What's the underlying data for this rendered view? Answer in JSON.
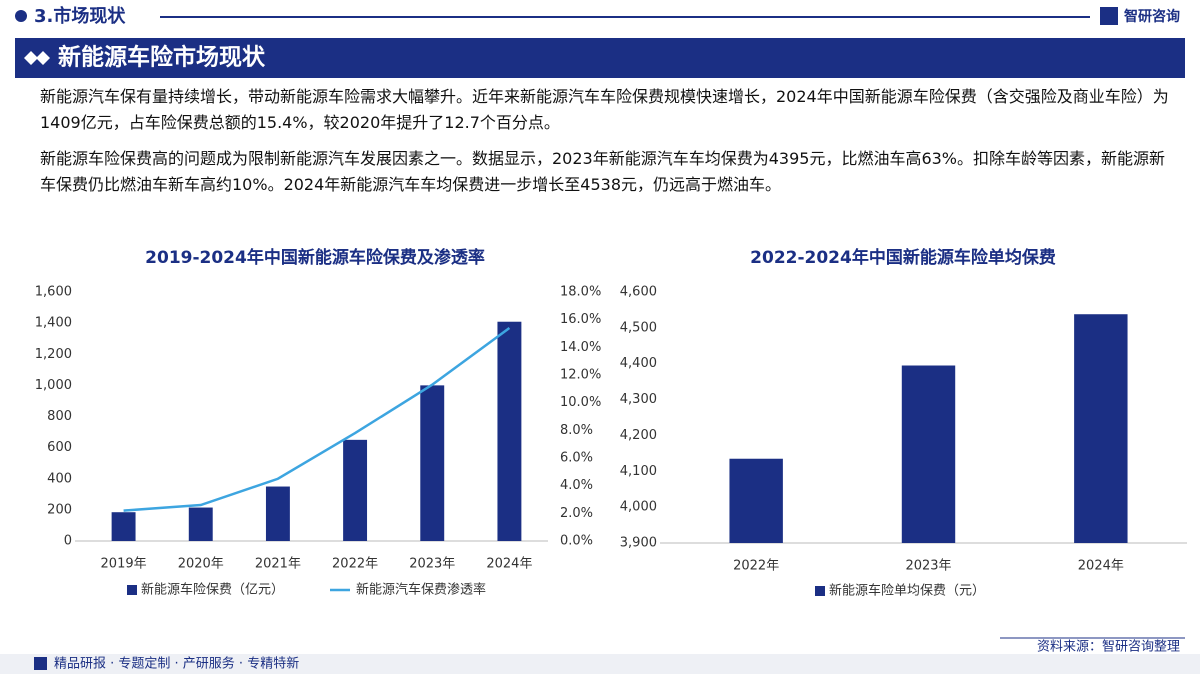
{
  "header": {
    "section": "3.市场现状",
    "brand": "智研咨询",
    "banner": "新能源车险市场现状"
  },
  "paragraphs": [
    "新能源汽车保有量持续增长，带动新能源车险需求大幅攀升。近年来新能源汽车车险保费规模快速增长，2024年中国新能源车险保费（含交强险及商业车险）为1409亿元，占车险保费总额的15.4%，较2020年提升了12.7个百分点。",
    "新能源车险保费高的问题成为限制新能源汽车发展因素之一。数据显示，2023年新能源汽车车均保费为4395元，比燃油车高63%。扣除车龄等因素，新能源新车保费仍比燃油车新车高约10%。2024年新能源汽车车均保费进一步增长至4538元，仍远高于燃油车。"
  ],
  "chart_data": [
    {
      "type": "bar",
      "title": "2019-2024年中国新能源车险保费及渗透率",
      "categories": [
        "2019年",
        "2020年",
        "2021年",
        "2022年",
        "2023年",
        "2024年"
      ],
      "series": [
        {
          "name": "新能源车险保费（亿元）",
          "color": "#1b2f84",
          "values": [
            185,
            215,
            350,
            650,
            1000,
            1409
          ]
        },
        {
          "name": "新能源汽车保费渗透率",
          "type": "line",
          "axis": "y2",
          "color": "#3da5e0",
          "values": [
            2.2,
            2.6,
            4.5,
            7.8,
            11.3,
            15.4
          ]
        }
      ],
      "ylim": [
        0,
        1600
      ],
      "yticks": [
        0,
        200,
        400,
        600,
        800,
        {
          "value": 1000,
          "label": "1,000"
        },
        {
          "value": 1200,
          "label": "1,200"
        },
        {
          "value": 1400,
          "label": "1,400"
        },
        {
          "value": 1600,
          "label": "1,600"
        }
      ],
      "y2lim": [
        0,
        18
      ],
      "y2ticks": [
        {
          "value": 0,
          "label": "0.0%"
        },
        {
          "value": 2,
          "label": "2.0%"
        },
        {
          "value": 4,
          "label": "4.0%"
        },
        {
          "value": 6,
          "label": "6.0%"
        },
        {
          "value": 8,
          "label": "8.0%"
        },
        {
          "value": 10,
          "label": "10.0%"
        },
        {
          "value": 12,
          "label": "12.0%"
        },
        {
          "value": 14,
          "label": "14.0%"
        },
        {
          "value": 16,
          "label": "16.0%"
        },
        {
          "value": 18,
          "label": "18.0%"
        }
      ]
    },
    {
      "type": "bar",
      "title": "2022-2024年中国新能源车险单均保费",
      "categories": [
        "2022年",
        "2023年",
        "2024年"
      ],
      "series": [
        {
          "name": "新能源车险单均保费（元）",
          "color": "#1b2f84",
          "values": [
            4135,
            4395,
            4538
          ]
        }
      ],
      "ylim": [
        3900,
        4600
      ],
      "yticks": [
        {
          "value": 3900,
          "label": "3,900"
        },
        {
          "value": 4000,
          "label": "4,000"
        },
        {
          "value": 4100,
          "label": "4,100"
        },
        {
          "value": 4200,
          "label": "4,200"
        },
        {
          "value": 4300,
          "label": "4,300"
        },
        {
          "value": 4400,
          "label": "4,400"
        },
        {
          "value": 4500,
          "label": "4,500"
        },
        {
          "value": 4600,
          "label": "4,600"
        }
      ]
    }
  ],
  "footer": {
    "source": "资料来源：智研咨询整理",
    "slogan": "精品研报 · 专题定制 · 产研服务 · 专精特新"
  }
}
